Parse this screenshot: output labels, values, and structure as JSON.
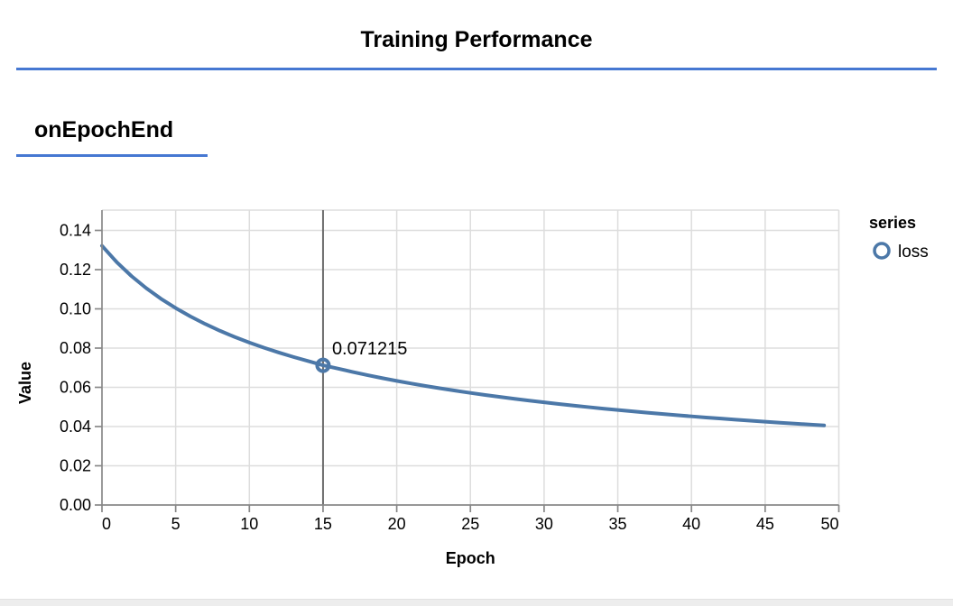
{
  "header": {
    "title": "Training Performance"
  },
  "section": {
    "title": "onEpochEnd"
  },
  "colors": {
    "accent_blue": "#4678d2",
    "line": "#4c78a8",
    "grid": "#dddddd",
    "axis": "#888888",
    "hover_rule": "#6e6e6e",
    "text": "#000000",
    "bottom_strip": "#ededed"
  },
  "chart_data": {
    "type": "line",
    "title": "",
    "xlabel": "Epoch",
    "ylabel": "Value",
    "x_range": [
      0,
      50
    ],
    "y_range": [
      0,
      0.15
    ],
    "grid": true,
    "x_ticks": [
      0,
      5,
      10,
      15,
      20,
      25,
      30,
      35,
      40,
      45,
      50
    ],
    "x_tick_labels": [
      "0",
      "5",
      "10",
      "15",
      "20",
      "25",
      "30",
      "35",
      "40",
      "45",
      "50"
    ],
    "y_ticks": [
      0,
      0.02,
      0.04,
      0.06,
      0.08,
      0.1,
      0.12,
      0.14
    ],
    "y_tick_labels": [
      "0.00",
      "0.02",
      "0.04",
      "0.06",
      "0.08",
      "0.10",
      "0.12",
      "0.14"
    ],
    "legend": {
      "title": "series",
      "position": "right",
      "items": [
        {
          "label": "loss",
          "color": "#4c78a8",
          "symbol": "open-circle"
        }
      ]
    },
    "series": [
      {
        "name": "loss",
        "x": [
          0,
          1,
          2,
          3,
          4,
          5,
          6,
          7,
          8,
          9,
          10,
          11,
          12,
          13,
          14,
          15,
          16,
          17,
          18,
          19,
          20,
          21,
          22,
          23,
          24,
          25,
          26,
          27,
          28,
          29,
          30,
          31,
          32,
          33,
          34,
          35,
          36,
          37,
          38,
          39,
          40,
          41,
          42,
          43,
          44,
          45,
          46,
          47,
          48,
          49
        ],
        "values": [
          0.13215,
          0.12384,
          0.11672,
          0.11058,
          0.10517,
          0.10041,
          0.09614,
          0.09231,
          0.08884,
          0.08568,
          0.08281,
          0.08016,
          0.07772,
          0.07546,
          0.07336,
          0.071215,
          0.06956,
          0.06785,
          0.06623,
          0.06471,
          0.06327,
          0.06192,
          0.06063,
          0.05942,
          0.05826,
          0.05716,
          0.05611,
          0.05511,
          0.05415,
          0.05323,
          0.05235,
          0.0515,
          0.05069,
          0.04991,
          0.04916,
          0.04844,
          0.04774,
          0.04707,
          0.04643,
          0.0458,
          0.0452,
          0.04462,
          0.04406,
          0.04351,
          0.04298,
          0.04247,
          0.04197,
          0.04149,
          0.04102,
          0.04057
        ]
      }
    ],
    "annotation": {
      "x": 15,
      "value": 0.071215,
      "label": "0.071215"
    }
  }
}
